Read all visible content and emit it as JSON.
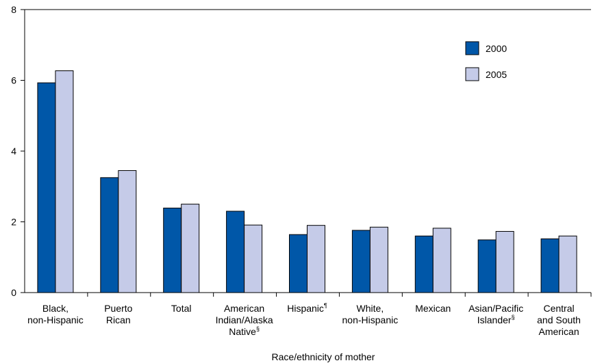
{
  "chart_data": {
    "type": "bar",
    "title": "",
    "xlabel": "Race/ethnicity of mother",
    "ylabel": "",
    "ylim": [
      0,
      8
    ],
    "yticks": [
      0,
      2,
      4,
      6,
      8
    ],
    "grid": false,
    "legend_position": "top-right",
    "categories": [
      {
        "lines": [
          "Black,",
          "non-Hispanic"
        ],
        "sup": ""
      },
      {
        "lines": [
          "Puerto",
          "Rican"
        ],
        "sup": ""
      },
      {
        "lines": [
          "Total"
        ],
        "sup": ""
      },
      {
        "lines": [
          "American",
          "Indian/Alaska",
          "Native"
        ],
        "sup": "§"
      },
      {
        "lines": [
          "Hispanic"
        ],
        "sup": "¶"
      },
      {
        "lines": [
          "White,",
          "non-Hispanic"
        ],
        "sup": ""
      },
      {
        "lines": [
          "Mexican"
        ],
        "sup": ""
      },
      {
        "lines": [
          "Asian/Pacific",
          "Islander"
        ],
        "sup": "§"
      },
      {
        "lines": [
          "Central",
          "and South",
          "American"
        ],
        "sup": ""
      }
    ],
    "series": [
      {
        "name": "2000",
        "color": "#0057a8",
        "values": [
          5.93,
          3.25,
          2.39,
          2.3,
          1.64,
          1.76,
          1.6,
          1.49,
          1.52
        ]
      },
      {
        "name": "2005",
        "color": "#c5cbe8",
        "values": [
          6.27,
          3.45,
          2.5,
          1.91,
          1.9,
          1.85,
          1.82,
          1.73,
          1.6
        ]
      }
    ]
  }
}
